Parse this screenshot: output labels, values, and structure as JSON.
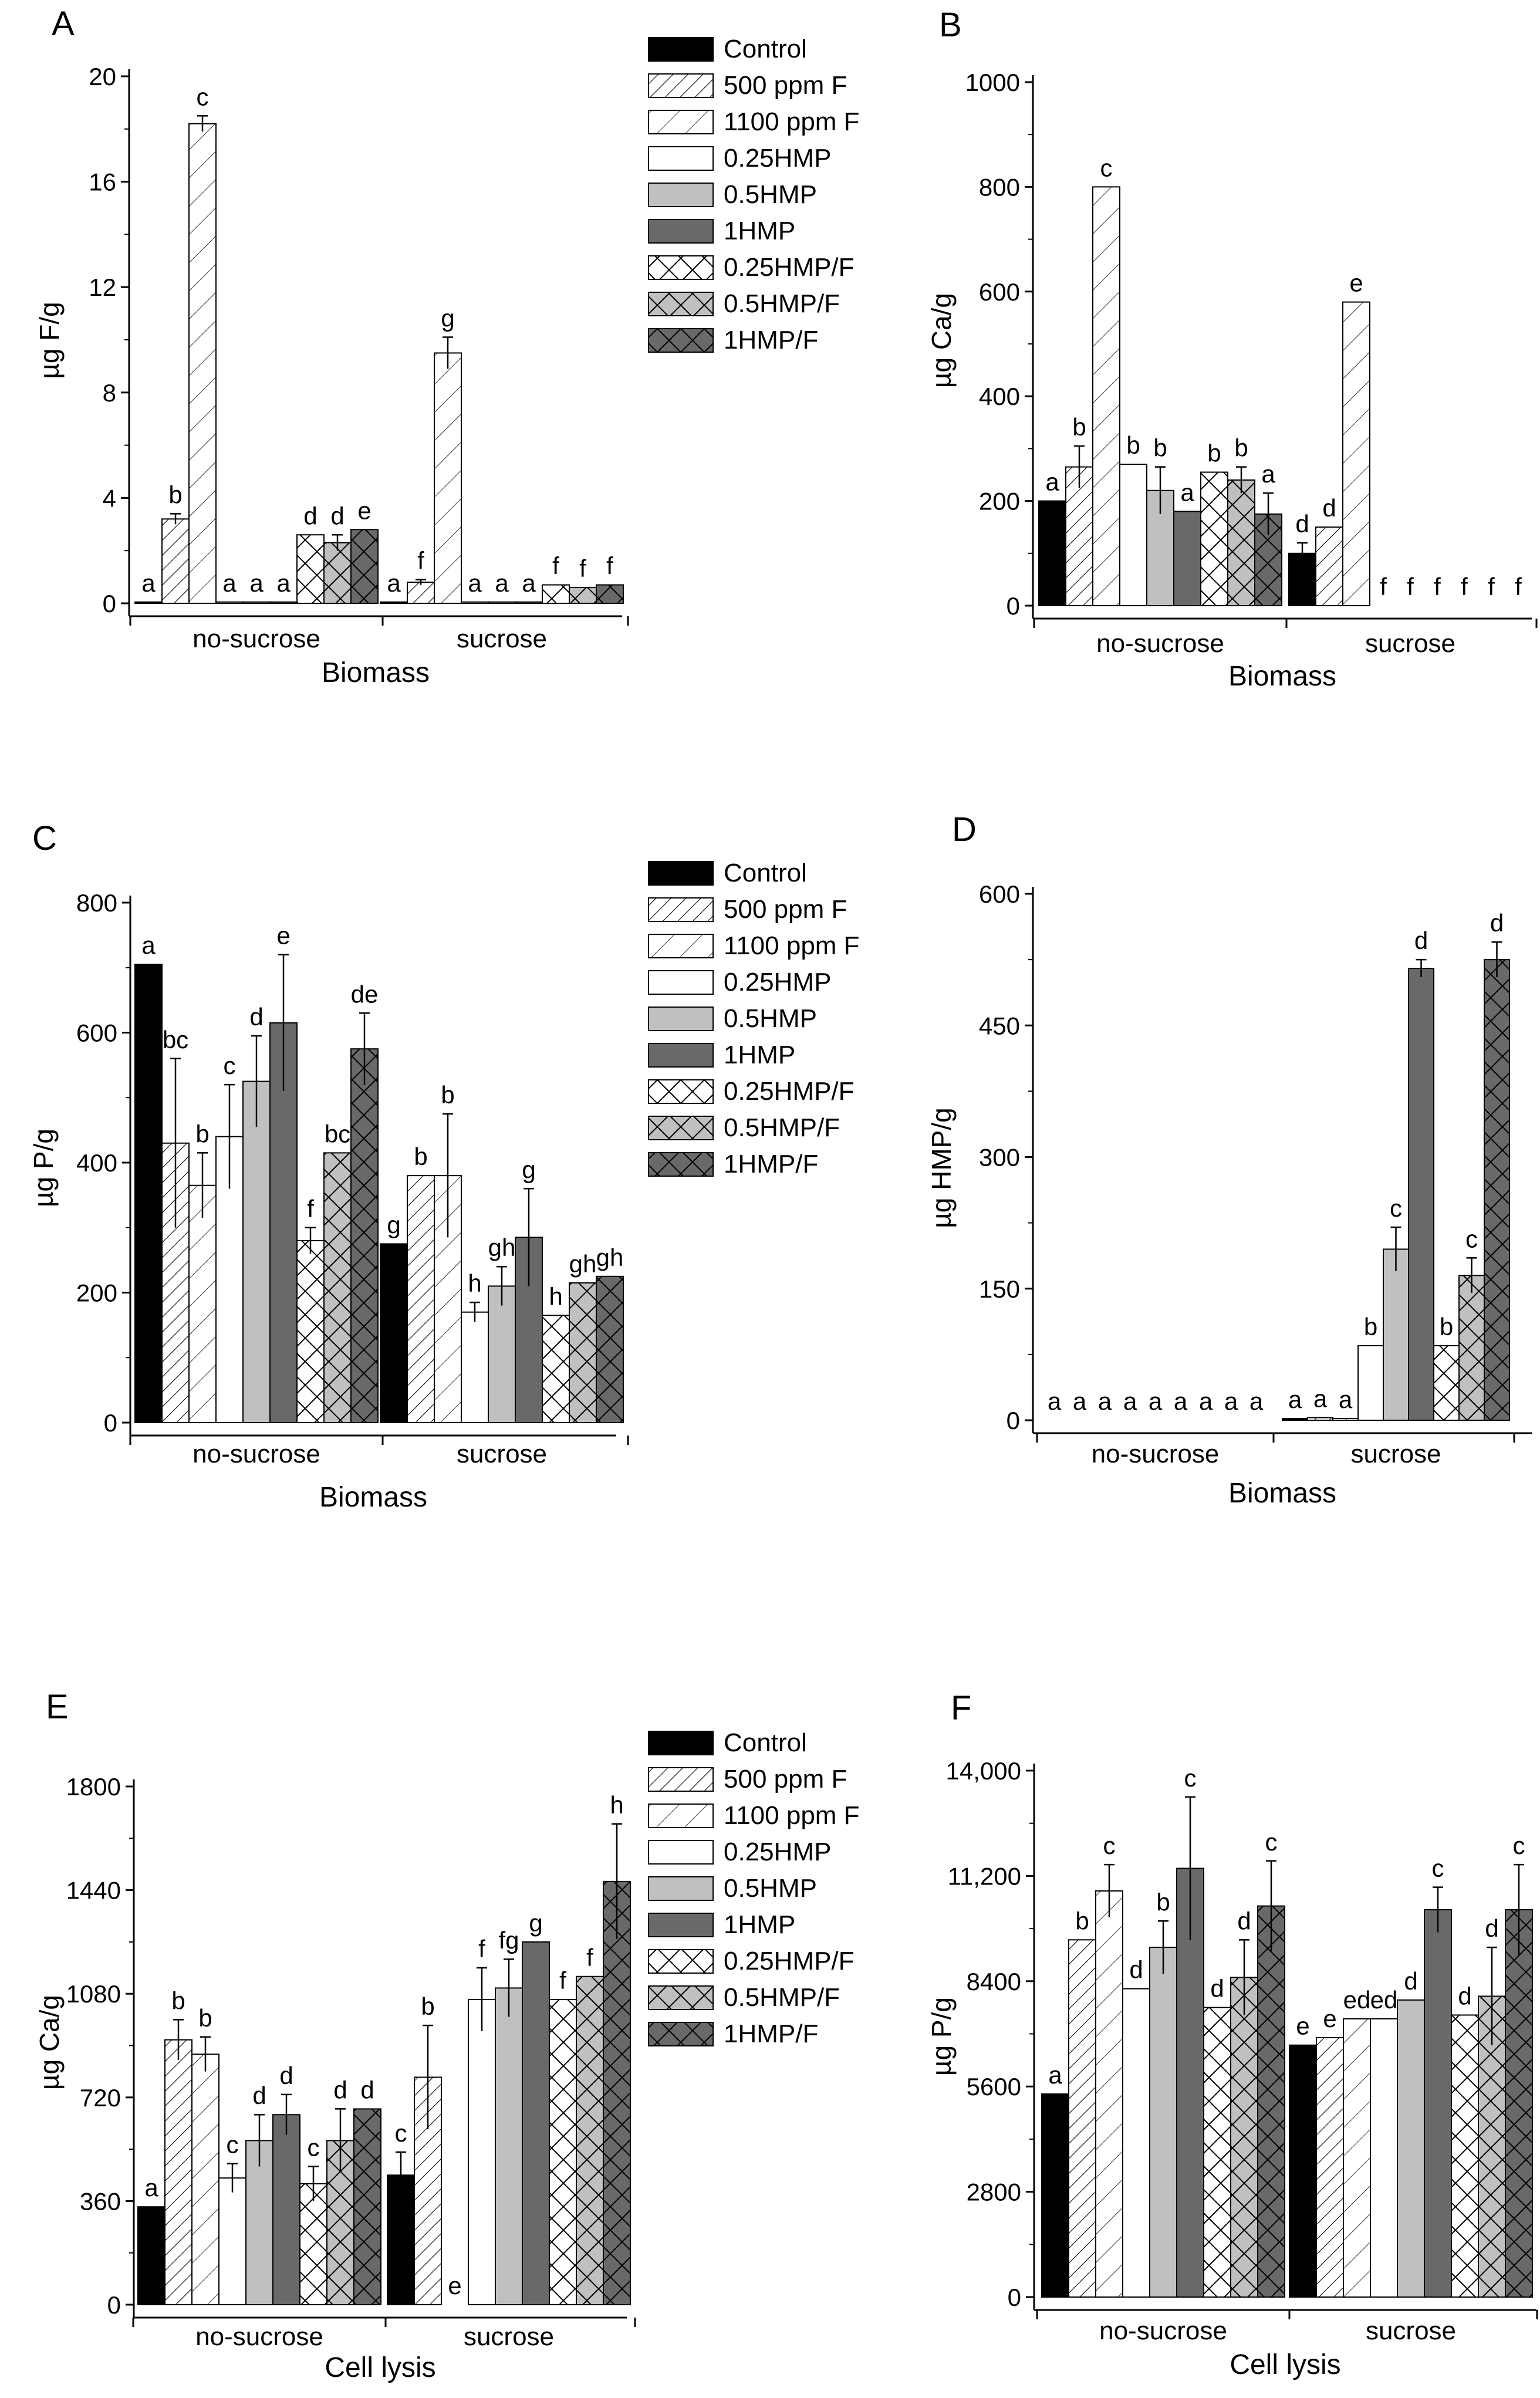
{
  "treatments": [
    {
      "name": "Control",
      "fill": "#000000",
      "pattern": "solid"
    },
    {
      "name": "500 ppm F",
      "fill": "#ffffff",
      "pattern": "diag-dense"
    },
    {
      "name": "1100 ppm F",
      "fill": "#ffffff",
      "pattern": "diag-sparse"
    },
    {
      "name": "0.25HMP",
      "fill": "#ffffff",
      "pattern": "none"
    },
    {
      "name": "0.5HMP",
      "fill": "#c0c0c0",
      "pattern": "none"
    },
    {
      "name": "1HMP",
      "fill": "#696969",
      "pattern": "none"
    },
    {
      "name": "0.25HMP/F",
      "fill": "#ffffff",
      "pattern": "cross"
    },
    {
      "name": "0.5HMP/F",
      "fill": "#c0c0c0",
      "pattern": "cross"
    },
    {
      "name": "1HMP/F",
      "fill": "#696969",
      "pattern": "cross"
    }
  ],
  "chart_data": [
    {
      "panel": "A",
      "type": "bar",
      "ylabel": "µg F/g",
      "xlabel": "Biomass",
      "groups": [
        "no-sucrose",
        "sucrose"
      ],
      "ylim": [
        0,
        20
      ],
      "yticks": [
        0,
        4,
        8,
        12,
        16,
        20
      ],
      "ytick_labels": [
        "0",
        "4",
        "8",
        "12",
        "16",
        "20"
      ],
      "legend": "right",
      "values": [
        [
          0.05,
          3.2,
          18.2,
          0.05,
          0.05,
          0.05,
          2.6,
          2.3,
          2.8
        ],
        [
          0.05,
          0.8,
          9.5,
          0.05,
          0.05,
          0.05,
          0.7,
          0.6,
          0.7
        ]
      ],
      "errors": [
        [
          0,
          0.2,
          0.3,
          0,
          0,
          0,
          0,
          0.3,
          0
        ],
        [
          0,
          0.1,
          0.6,
          0,
          0,
          0,
          0,
          0,
          0
        ]
      ],
      "letters": [
        [
          "a",
          "b",
          "c",
          "a",
          "a",
          "a",
          "d",
          "d",
          "e"
        ],
        [
          "a",
          "f",
          "g",
          "a",
          "a",
          "a",
          "f",
          "f",
          "f"
        ]
      ]
    },
    {
      "panel": "B",
      "type": "bar",
      "ylabel": "µg Ca/g",
      "xlabel": "Biomass",
      "groups": [
        "no-sucrose",
        "sucrose"
      ],
      "ylim": [
        0,
        1000
      ],
      "yticks": [
        0,
        200,
        400,
        600,
        800,
        1000
      ],
      "ytick_labels": [
        "0",
        "200",
        "400",
        "600",
        "800",
        "1000"
      ],
      "legend": "none",
      "values": [
        [
          200,
          265,
          800,
          270,
          220,
          180,
          255,
          240,
          175
        ],
        [
          100,
          150,
          580,
          0,
          0,
          0,
          0,
          0,
          0
        ]
      ],
      "errors": [
        [
          0,
          40,
          0,
          0,
          45,
          0,
          0,
          25,
          40
        ],
        [
          20,
          0,
          0,
          0,
          0,
          0,
          0,
          0,
          0
        ]
      ],
      "letters": [
        [
          "a",
          "b",
          "c",
          "b",
          "b",
          "a",
          "b",
          "b",
          "a"
        ],
        [
          "d",
          "d",
          "e",
          "f",
          "f",
          "f",
          "f",
          "f",
          "f"
        ]
      ]
    },
    {
      "panel": "C",
      "type": "bar",
      "ylabel": "µg P/g",
      "xlabel": "Biomass",
      "groups": [
        "no-sucrose",
        "sucrose"
      ],
      "ylim": [
        0,
        800
      ],
      "yticks": [
        0,
        200,
        400,
        600,
        800
      ],
      "ytick_labels": [
        "0",
        "200",
        "400",
        "600",
        "800"
      ],
      "legend": "right",
      "values": [
        [
          705,
          430,
          365,
          440,
          525,
          615,
          280,
          415,
          575
        ],
        [
          275,
          380,
          380,
          170,
          210,
          285,
          165,
          215,
          225
        ]
      ],
      "errors": [
        [
          0,
          130,
          50,
          80,
          70,
          105,
          20,
          0,
          55
        ],
        [
          0,
          0,
          95,
          15,
          30,
          75,
          0,
          0,
          0
        ]
      ],
      "letters": [
        [
          "a",
          "bc",
          "b",
          "c",
          "d",
          "e",
          "f",
          "bc",
          "de"
        ],
        [
          "g",
          "b",
          "b",
          "h",
          "gh",
          "g",
          "h",
          "gh",
          "gh"
        ]
      ]
    },
    {
      "panel": "D",
      "type": "bar",
      "ylabel": "µg HMP/g",
      "xlabel": "Biomass",
      "groups": [
        "no-sucrose",
        "sucrose"
      ],
      "ylim": [
        0,
        600
      ],
      "yticks": [
        0,
        150,
        300,
        450,
        600
      ],
      "ytick_labels": [
        "0",
        "150",
        "300",
        "450",
        "600"
      ],
      "legend": "none",
      "values": [
        [
          0,
          0,
          0,
          0,
          0,
          0,
          0,
          0,
          0
        ],
        [
          2,
          3,
          2,
          85,
          195,
          515,
          85,
          165,
          525
        ]
      ],
      "errors": [
        [
          0,
          0,
          0,
          0,
          0,
          0,
          0,
          0,
          0
        ],
        [
          0,
          0,
          0,
          0,
          25,
          10,
          0,
          20,
          20
        ]
      ],
      "letters": [
        [
          "a",
          "a",
          "a",
          "a",
          "a",
          "a",
          "a",
          "a",
          "a"
        ],
        [
          "a",
          "a",
          "a",
          "b",
          "c",
          "d",
          "b",
          "c",
          "d"
        ]
      ]
    },
    {
      "panel": "E",
      "type": "bar",
      "ylabel": "µg Ca/g",
      "xlabel": "Cell lysis",
      "groups": [
        "no-sucrose",
        "sucrose"
      ],
      "ylim": [
        0,
        1800
      ],
      "yticks": [
        0,
        360,
        720,
        1080,
        1440,
        1800
      ],
      "ytick_labels": [
        "0",
        "360",
        "720",
        "1080",
        "1440",
        "1800"
      ],
      "legend": "right",
      "values": [
        [
          340,
          920,
          870,
          440,
          570,
          660,
          420,
          570,
          680
        ],
        [
          450,
          790,
          0,
          1060,
          1100,
          1260,
          1060,
          1140,
          1470
        ]
      ],
      "errors": [
        [
          0,
          70,
          60,
          50,
          90,
          70,
          60,
          110,
          0
        ],
        [
          80,
          180,
          0,
          110,
          100,
          0,
          0,
          0,
          200
        ]
      ],
      "letters": [
        [
          "a",
          "b",
          "b",
          "c",
          "d",
          "d",
          "c",
          "d",
          "d"
        ],
        [
          "c",
          "b",
          "e",
          "f",
          "fg",
          "g",
          "f",
          "f",
          "h"
        ]
      ]
    },
    {
      "panel": "F",
      "type": "bar",
      "ylabel": "µg P/g",
      "xlabel": "Cell lysis",
      "groups": [
        "no-sucrose",
        "sucrose"
      ],
      "ylim": [
        0,
        14000
      ],
      "yticks": [
        0,
        2800,
        5600,
        8400,
        11200,
        14000
      ],
      "ytick_labels": [
        "0",
        "2800",
        "5600",
        "8400",
        "11,200",
        "14,000"
      ],
      "legend": "none",
      "values": [
        [
          5400,
          9500,
          10800,
          8200,
          9300,
          11400,
          7700,
          8500,
          10400
        ],
        [
          6700,
          6900,
          7400,
          7400,
          7900,
          10300,
          7500,
          8000,
          10300
        ]
      ],
      "errors": [
        [
          0,
          0,
          700,
          0,
          700,
          1900,
          0,
          1000,
          1200
        ],
        [
          0,
          0,
          0,
          0,
          0,
          600,
          0,
          1300,
          1200
        ]
      ],
      "letters": [
        [
          "a",
          "b",
          "c",
          "d",
          "b",
          "c",
          "d",
          "d",
          "c"
        ],
        [
          "e",
          "e",
          "ed",
          "ed",
          "d",
          "c",
          "d",
          "d",
          "c"
        ]
      ]
    }
  ]
}
